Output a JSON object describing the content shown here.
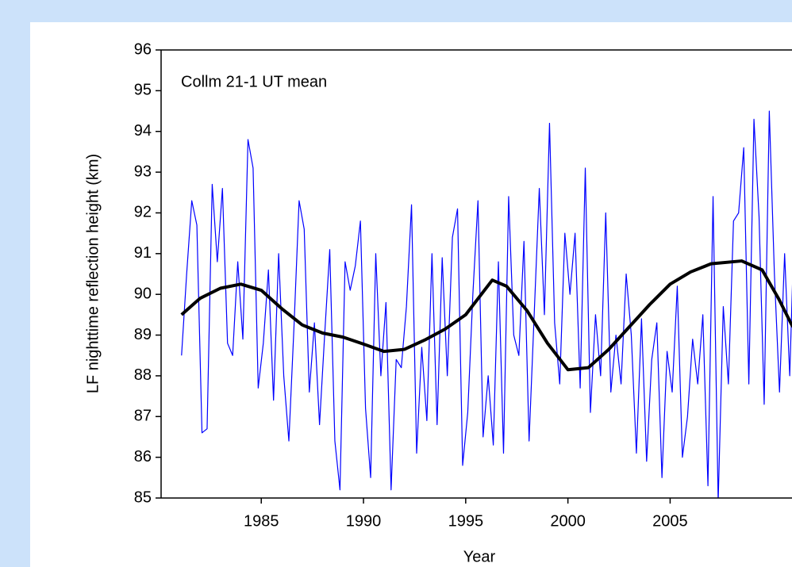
{
  "chart_data": {
    "type": "line",
    "annotation": "Collm 21-1 UT mean",
    "x_label": "Year",
    "y_label": "LF nighttime reflection height (km)",
    "xlim": [
      1980.1,
      2011
    ],
    "ylim": [
      85,
      96
    ],
    "xticks": [
      1985,
      1990,
      1995,
      2000,
      2005
    ],
    "yticks": [
      85,
      86,
      87,
      88,
      89,
      90,
      91,
      92,
      93,
      94,
      95,
      96
    ],
    "series": [
      {
        "name": "monthly",
        "color": "#0000ff",
        "width": 1.2,
        "x": [
          1981.1,
          1981.35,
          1981.6,
          1981.85,
          1982.1,
          1982.35,
          1982.6,
          1982.85,
          1983.1,
          1983.35,
          1983.6,
          1983.85,
          1984.1,
          1984.35,
          1984.6,
          1984.85,
          1985.1,
          1985.35,
          1985.6,
          1985.85,
          1986.1,
          1986.35,
          1986.6,
          1986.85,
          1987.1,
          1987.35,
          1987.6,
          1987.85,
          1988.1,
          1988.35,
          1988.6,
          1988.85,
          1989.1,
          1989.35,
          1989.6,
          1989.85,
          1990.1,
          1990.35,
          1990.6,
          1990.85,
          1991.1,
          1991.35,
          1991.6,
          1991.85,
          1992.1,
          1992.35,
          1992.6,
          1992.85,
          1993.1,
          1993.35,
          1993.6,
          1993.85,
          1994.1,
          1994.35,
          1994.6,
          1994.85,
          1995.1,
          1995.35,
          1995.6,
          1995.85,
          1996.1,
          1996.35,
          1996.6,
          1996.85,
          1997.1,
          1997.35,
          1997.6,
          1997.85,
          1998.1,
          1998.35,
          1998.6,
          1998.85,
          1999.1,
          1999.35,
          1999.6,
          1999.85,
          2000.1,
          2000.35,
          2000.6,
          2000.85,
          2001.1,
          2001.35,
          2001.6,
          2001.85,
          2002.1,
          2002.35,
          2002.6,
          2002.85,
          2003.1,
          2003.35,
          2003.6,
          2003.85,
          2004.1,
          2004.35,
          2004.6,
          2004.85,
          2005.1,
          2005.35,
          2005.6,
          2005.85,
          2006.1,
          2006.35,
          2006.6,
          2006.85,
          2007.1,
          2007.35,
          2007.6,
          2007.85,
          2008.1,
          2008.35,
          2008.6,
          2008.85,
          2009.1,
          2009.35,
          2009.6,
          2009.85,
          2010.1,
          2010.35,
          2010.6,
          2010.85,
          2011.1,
          2011.35
        ],
        "values": [
          88.5,
          90.5,
          92.3,
          91.7,
          86.6,
          86.7,
          92.7,
          90.8,
          92.6,
          88.8,
          88.5,
          90.8,
          88.9,
          93.8,
          93.1,
          87.7,
          88.8,
          90.6,
          87.4,
          91.0,
          88.0,
          86.4,
          89.2,
          92.3,
          91.6,
          87.6,
          89.3,
          86.8,
          89.0,
          91.1,
          86.4,
          85.2,
          90.8,
          90.1,
          90.7,
          91.8,
          87.2,
          85.5,
          91.0,
          88.0,
          89.8,
          85.2,
          88.4,
          88.2,
          89.7,
          92.2,
          86.1,
          88.7,
          86.9,
          91.0,
          86.8,
          90.9,
          88.0,
          91.4,
          92.1,
          85.8,
          87.1,
          90.0,
          92.3,
          86.5,
          88.0,
          86.3,
          90.8,
          86.1,
          92.4,
          89.0,
          88.5,
          91.3,
          86.4,
          89.5,
          92.6,
          89.5,
          94.2,
          89.3,
          87.8,
          91.5,
          90.0,
          91.5,
          87.7,
          93.1,
          87.1,
          89.5,
          88.0,
          92.0,
          87.6,
          89.0,
          87.8,
          90.5,
          89.0,
          86.1,
          89.4,
          85.9,
          88.4,
          89.3,
          85.5,
          88.6,
          87.6,
          90.2,
          86.0,
          87.0,
          88.9,
          87.8,
          89.5,
          85.3,
          92.4,
          84.9,
          89.7,
          87.8,
          91.8,
          92.0,
          93.6,
          87.8,
          94.3,
          91.9,
          87.3,
          94.5,
          90.5,
          87.6,
          91.0,
          88.0,
          92.2,
          85.0
        ]
      },
      {
        "name": "smoothed",
        "color": "#000000",
        "width": 4,
        "x": [
          1981.1,
          1982,
          1983,
          1984,
          1985,
          1986,
          1987,
          1988,
          1989,
          1990,
          1991,
          1992,
          1993,
          1994,
          1995,
          1996.3,
          1997,
          1998,
          1999,
          2000,
          2001,
          2002,
          2003,
          2004,
          2005,
          2006,
          2007,
          2008.5,
          2009.5,
          2010.3,
          2011
        ],
        "values": [
          89.5,
          89.9,
          90.15,
          90.25,
          90.1,
          89.65,
          89.25,
          89.05,
          88.95,
          88.78,
          88.6,
          88.65,
          88.88,
          89.15,
          89.5,
          90.35,
          90.2,
          89.6,
          88.8,
          88.15,
          88.2,
          88.65,
          89.2,
          89.75,
          90.25,
          90.55,
          90.75,
          90.82,
          90.6,
          89.9,
          89.2
        ]
      }
    ]
  }
}
